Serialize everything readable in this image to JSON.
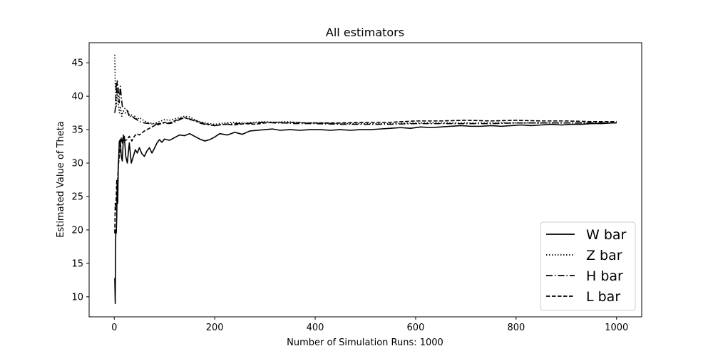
{
  "chart_data": {
    "type": "line",
    "title": "All estimators",
    "xlabel": "Number of Simulation Runs: 1000",
    "ylabel": "Estimated Value of Theta",
    "xlim": [
      -50,
      1050
    ],
    "ylim": [
      7,
      48
    ],
    "xticks": [
      0,
      200,
      400,
      600,
      800,
      1000
    ],
    "yticks": [
      10,
      15,
      20,
      25,
      30,
      35,
      40,
      45
    ],
    "grid": false,
    "legend_position": "lower-right",
    "line_color": "#000000",
    "series": [
      {
        "name": "W bar",
        "style": "solid",
        "points": [
          [
            1,
            12.8
          ],
          [
            2,
            9.0
          ],
          [
            3,
            20.0
          ],
          [
            4,
            19.5
          ],
          [
            5,
            22.0
          ],
          [
            6,
            27.0
          ],
          [
            7,
            24.0
          ],
          [
            8,
            29.5
          ],
          [
            9,
            31.0
          ],
          [
            10,
            33.2
          ],
          [
            12,
            33.5
          ],
          [
            14,
            31.0
          ],
          [
            16,
            30.3
          ],
          [
            18,
            33.5
          ],
          [
            20,
            34.0
          ],
          [
            23,
            31.0
          ],
          [
            26,
            30.0
          ],
          [
            30,
            33.0
          ],
          [
            34,
            30.0
          ],
          [
            38,
            31.0
          ],
          [
            42,
            32.0
          ],
          [
            46,
            31.5
          ],
          [
            50,
            32.3
          ],
          [
            55,
            31.4
          ],
          [
            60,
            31.0
          ],
          [
            65,
            31.8
          ],
          [
            70,
            32.3
          ],
          [
            75,
            31.5
          ],
          [
            80,
            32.2
          ],
          [
            85,
            33.0
          ],
          [
            90,
            33.5
          ],
          [
            95,
            33.1
          ],
          [
            100,
            33.6
          ],
          [
            110,
            33.4
          ],
          [
            120,
            33.8
          ],
          [
            130,
            34.2
          ],
          [
            140,
            34.1
          ],
          [
            150,
            34.4
          ],
          [
            160,
            34.0
          ],
          [
            170,
            33.6
          ],
          [
            180,
            33.3
          ],
          [
            190,
            33.5
          ],
          [
            200,
            33.9
          ],
          [
            210,
            34.4
          ],
          [
            225,
            34.2
          ],
          [
            240,
            34.6
          ],
          [
            255,
            34.3
          ],
          [
            270,
            34.8
          ],
          [
            285,
            34.9
          ],
          [
            300,
            35.0
          ],
          [
            315,
            35.1
          ],
          [
            330,
            34.9
          ],
          [
            350,
            35.0
          ],
          [
            370,
            34.9
          ],
          [
            390,
            35.0
          ],
          [
            410,
            35.0
          ],
          [
            430,
            34.9
          ],
          [
            450,
            35.0
          ],
          [
            470,
            34.9
          ],
          [
            490,
            35.0
          ],
          [
            510,
            35.0
          ],
          [
            530,
            35.1
          ],
          [
            550,
            35.2
          ],
          [
            570,
            35.3
          ],
          [
            590,
            35.2
          ],
          [
            610,
            35.4
          ],
          [
            630,
            35.3
          ],
          [
            650,
            35.4
          ],
          [
            670,
            35.5
          ],
          [
            690,
            35.6
          ],
          [
            710,
            35.5
          ],
          [
            730,
            35.5
          ],
          [
            750,
            35.6
          ],
          [
            770,
            35.5
          ],
          [
            790,
            35.6
          ],
          [
            810,
            35.7
          ],
          [
            830,
            35.6
          ],
          [
            850,
            35.7
          ],
          [
            870,
            35.8
          ],
          [
            890,
            35.7
          ],
          [
            910,
            35.8
          ],
          [
            930,
            35.8
          ],
          [
            950,
            35.9
          ],
          [
            970,
            35.9
          ],
          [
            990,
            36.0
          ],
          [
            1000,
            36.0
          ]
        ]
      },
      {
        "name": "Z bar",
        "style": "dotted",
        "points": [
          [
            1,
            46.2
          ],
          [
            2,
            42.0
          ],
          [
            3,
            40.2
          ],
          [
            4,
            38.5
          ],
          [
            5,
            39.5
          ],
          [
            6,
            41.0
          ],
          [
            8,
            39.0
          ],
          [
            10,
            37.5
          ],
          [
            12,
            38.5
          ],
          [
            15,
            37.0
          ],
          [
            18,
            37.8
          ],
          [
            22,
            37.5
          ],
          [
            26,
            38.0
          ],
          [
            30,
            37.2
          ],
          [
            35,
            36.8
          ],
          [
            40,
            37.1
          ],
          [
            45,
            36.5
          ],
          [
            50,
            36.8
          ],
          [
            60,
            36.3
          ],
          [
            70,
            36.0
          ],
          [
            80,
            35.9
          ],
          [
            90,
            36.2
          ],
          [
            100,
            36.5
          ],
          [
            110,
            36.4
          ],
          [
            120,
            36.6
          ],
          [
            130,
            36.8
          ],
          [
            140,
            37.0
          ],
          [
            150,
            36.9
          ],
          [
            160,
            36.5
          ],
          [
            170,
            36.2
          ],
          [
            180,
            36.0
          ],
          [
            200,
            35.8
          ],
          [
            220,
            36.0
          ],
          [
            240,
            36.1
          ],
          [
            260,
            36.0
          ],
          [
            280,
            36.1
          ],
          [
            300,
            36.2
          ],
          [
            320,
            36.1
          ],
          [
            340,
            36.2
          ],
          [
            360,
            36.1
          ],
          [
            380,
            36.0
          ],
          [
            400,
            36.0
          ],
          [
            450,
            35.9
          ],
          [
            500,
            35.9
          ],
          [
            550,
            35.9
          ],
          [
            600,
            36.0
          ],
          [
            650,
            36.0
          ],
          [
            700,
            36.0
          ],
          [
            750,
            36.0
          ],
          [
            800,
            36.0
          ],
          [
            850,
            36.0
          ],
          [
            900,
            36.0
          ],
          [
            950,
            36.0
          ],
          [
            1000,
            36.0
          ]
        ]
      },
      {
        "name": "H bar",
        "style": "dashdot",
        "points": [
          [
            1,
            37.5
          ],
          [
            2,
            38.0
          ],
          [
            3,
            39.5
          ],
          [
            4,
            42.0
          ],
          [
            5,
            40.5
          ],
          [
            6,
            42.3
          ],
          [
            8,
            41.0
          ],
          [
            10,
            39.0
          ],
          [
            12,
            41.5
          ],
          [
            14,
            40.0
          ],
          [
            16,
            38.5
          ],
          [
            20,
            38.2
          ],
          [
            25,
            38.0
          ],
          [
            30,
            37.0
          ],
          [
            35,
            37.2
          ],
          [
            40,
            36.7
          ],
          [
            45,
            36.5
          ],
          [
            50,
            36.2
          ],
          [
            60,
            36.0
          ],
          [
            70,
            35.9
          ],
          [
            80,
            35.8
          ],
          [
            90,
            35.9
          ],
          [
            100,
            36.0
          ],
          [
            110,
            35.9
          ],
          [
            120,
            36.1
          ],
          [
            130,
            36.5
          ],
          [
            140,
            36.8
          ],
          [
            150,
            36.6
          ],
          [
            160,
            36.3
          ],
          [
            170,
            36.0
          ],
          [
            180,
            35.8
          ],
          [
            200,
            35.6
          ],
          [
            220,
            35.8
          ],
          [
            240,
            35.9
          ],
          [
            260,
            35.9
          ],
          [
            280,
            36.0
          ],
          [
            300,
            36.1
          ],
          [
            320,
            36.0
          ],
          [
            340,
            36.0
          ],
          [
            360,
            35.9
          ],
          [
            380,
            35.9
          ],
          [
            400,
            35.9
          ],
          [
            450,
            35.8
          ],
          [
            500,
            35.8
          ],
          [
            550,
            35.8
          ],
          [
            600,
            35.9
          ],
          [
            650,
            35.9
          ],
          [
            700,
            35.9
          ],
          [
            750,
            35.9
          ],
          [
            800,
            36.0
          ],
          [
            850,
            36.0
          ],
          [
            900,
            36.0
          ],
          [
            950,
            36.0
          ],
          [
            1000,
            36.0
          ]
        ]
      },
      {
        "name": "L bar",
        "style": "dashed",
        "points": [
          [
            1,
            19.5
          ],
          [
            2,
            24.0
          ],
          [
            3,
            23.0
          ],
          [
            4,
            25.0
          ],
          [
            5,
            27.5
          ],
          [
            6,
            26.0
          ],
          [
            8,
            29.5
          ],
          [
            10,
            31.0
          ],
          [
            12,
            32.5
          ],
          [
            14,
            33.8
          ],
          [
            16,
            33.0
          ],
          [
            18,
            34.2
          ],
          [
            20,
            33.3
          ],
          [
            25,
            33.5
          ],
          [
            30,
            34.0
          ],
          [
            35,
            33.3
          ],
          [
            40,
            34.0
          ],
          [
            45,
            34.4
          ],
          [
            50,
            34.2
          ],
          [
            60,
            34.8
          ],
          [
            70,
            35.2
          ],
          [
            80,
            35.6
          ],
          [
            90,
            35.8
          ],
          [
            100,
            36.1
          ],
          [
            110,
            36.0
          ],
          [
            120,
            36.3
          ],
          [
            130,
            36.6
          ],
          [
            140,
            36.8
          ],
          [
            150,
            36.5
          ],
          [
            160,
            36.4
          ],
          [
            170,
            36.1
          ],
          [
            180,
            35.9
          ],
          [
            200,
            35.6
          ],
          [
            220,
            35.8
          ],
          [
            240,
            35.7
          ],
          [
            260,
            35.9
          ],
          [
            280,
            35.8
          ],
          [
            300,
            36.0
          ],
          [
            320,
            36.1
          ],
          [
            340,
            36.0
          ],
          [
            360,
            36.1
          ],
          [
            380,
            36.0
          ],
          [
            400,
            36.0
          ],
          [
            450,
            36.0
          ],
          [
            500,
            36.1
          ],
          [
            550,
            36.1
          ],
          [
            600,
            36.3
          ],
          [
            650,
            36.3
          ],
          [
            700,
            36.4
          ],
          [
            750,
            36.3
          ],
          [
            800,
            36.4
          ],
          [
            850,
            36.3
          ],
          [
            900,
            36.3
          ],
          [
            950,
            36.2
          ],
          [
            1000,
            36.2
          ]
        ]
      }
    ]
  }
}
